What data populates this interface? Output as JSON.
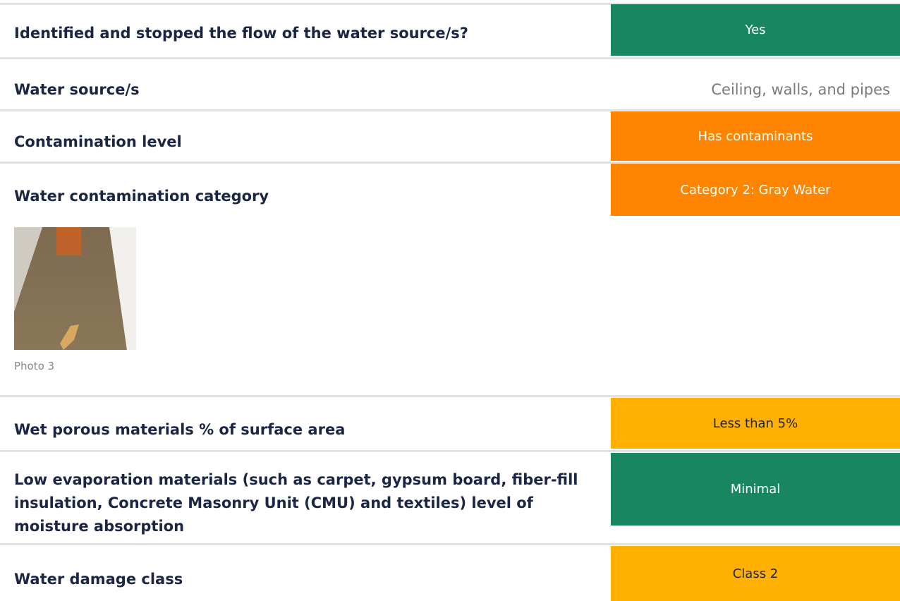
{
  "rows": [
    {
      "label": "Identified and stopped the flow of the water source/s?",
      "value": "Yes"
    },
    {
      "label": "Water source/s",
      "value": "Ceiling, walls, and pipes"
    },
    {
      "label": "Contamination level",
      "value": "Has contaminants"
    },
    {
      "label": "Water contamination category",
      "value": "Category 2: Gray Water"
    },
    {
      "label": "Wet porous materials % of surface area",
      "value": "Less than 5%"
    },
    {
      "label": "Low evaporation materials (such as carpet, gypsum board, fiber-fill insulation, Concrete Masonry Unit (CMU) and textiles) level of moisture absorption",
      "value": "Minimal"
    },
    {
      "label": "Water damage class",
      "value": "Class 2"
    }
  ],
  "photo": {
    "caption": "Photo 3"
  }
}
